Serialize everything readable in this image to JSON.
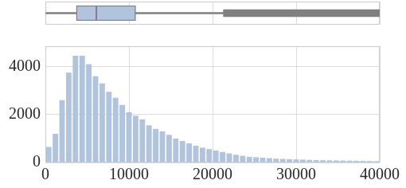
{
  "chart_data": [
    {
      "type": "box",
      "orientation": "horizontal",
      "whisker_low": 0,
      "q1": 3700,
      "median": 6100,
      "q3": 10800,
      "whisker_high": 21300,
      "outlier_range": [
        21300,
        40000
      ],
      "color": "#b0c4de",
      "xlim": [
        0,
        40000
      ],
      "xticks": [
        0,
        10000,
        20000,
        30000,
        40000
      ],
      "tick_labels": false,
      "grid": true
    },
    {
      "type": "histogram",
      "bins": [
        0,
        800,
        1600,
        2400,
        3200,
        4000,
        4800,
        5600,
        6400,
        7200,
        8000,
        8800,
        9600,
        10400,
        11200,
        12000,
        12800,
        13600,
        14400,
        15200,
        16000,
        16800,
        17600,
        18400,
        19200,
        20000,
        20800,
        21600,
        22400,
        23200,
        24000,
        24800,
        25600,
        26400,
        27200,
        28000,
        28800,
        29600,
        30400,
        31200,
        32000,
        32800,
        33600,
        34400,
        35200,
        36000,
        36800,
        37600,
        38400,
        39200,
        40000
      ],
      "counts": [
        650,
        1200,
        2600,
        3750,
        4450,
        4450,
        4100,
        3600,
        3300,
        2950,
        2700,
        2400,
        2100,
        1950,
        1800,
        1550,
        1400,
        1300,
        1150,
        1000,
        900,
        800,
        700,
        620,
        560,
        500,
        440,
        380,
        320,
        280,
        240,
        220,
        200,
        180,
        160,
        150,
        140,
        130,
        120,
        110,
        100,
        95,
        90,
        85,
        80,
        75,
        70,
        65,
        60,
        55
      ],
      "color": "#b0c4de",
      "xlim": [
        0,
        40000
      ],
      "xticks": [
        0,
        10000,
        20000,
        30000,
        40000
      ],
      "ylim": [
        0,
        4850
      ],
      "yticks": [
        0,
        2000,
        4000
      ],
      "grid": true
    }
  ]
}
